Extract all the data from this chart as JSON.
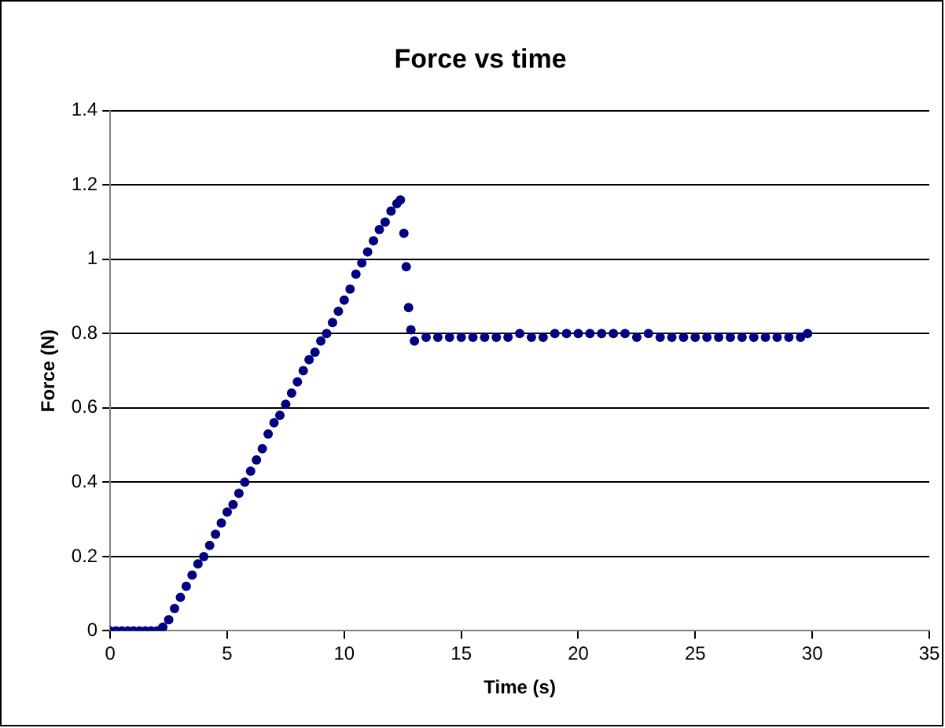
{
  "chart_data": {
    "type": "scatter",
    "title": "Force vs time",
    "xlabel": "Time (s)",
    "ylabel": "Force (N)",
    "x": [
      0,
      0.25,
      0.5,
      0.75,
      1,
      1.25,
      1.5,
      1.75,
      2,
      2.25,
      2.5,
      2.75,
      3,
      3.25,
      3.5,
      3.75,
      4,
      4.25,
      4.5,
      4.75,
      5,
      5.25,
      5.5,
      5.75,
      6,
      6.25,
      6.5,
      6.75,
      7,
      7.25,
      7.5,
      7.75,
      8,
      8.25,
      8.5,
      8.75,
      9,
      9.25,
      9.5,
      9.75,
      10,
      10.25,
      10.5,
      10.75,
      11,
      11.25,
      11.5,
      11.75,
      12,
      12.25,
      12.4,
      12.55,
      12.65,
      12.75,
      12.85,
      13,
      13.5,
      14,
      14.5,
      15,
      15.5,
      16,
      16.5,
      17,
      17.5,
      18,
      18.5,
      19,
      19.5,
      20,
      20.5,
      21,
      21.5,
      22,
      22.5,
      23,
      23.5,
      24,
      24.5,
      25,
      25.5,
      26,
      26.5,
      27,
      27.5,
      28,
      28.5,
      29,
      29.5,
      29.8
    ],
    "series": [
      {
        "color": "#000080",
        "values": [
          0,
          0,
          0,
          0,
          0,
          0,
          0,
          0,
          0,
          0.01,
          0.03,
          0.06,
          0.09,
          0.12,
          0.15,
          0.18,
          0.2,
          0.23,
          0.26,
          0.29,
          0.32,
          0.34,
          0.37,
          0.4,
          0.43,
          0.46,
          0.49,
          0.53,
          0.56,
          0.58,
          0.61,
          0.64,
          0.67,
          0.7,
          0.73,
          0.75,
          0.78,
          0.8,
          0.83,
          0.86,
          0.89,
          0.92,
          0.96,
          0.99,
          1.02,
          1.05,
          1.08,
          1.1,
          1.13,
          1.15,
          1.16,
          1.07,
          0.98,
          0.87,
          0.81,
          0.78,
          0.79,
          0.79,
          0.79,
          0.79,
          0.79,
          0.79,
          0.79,
          0.79,
          0.8,
          0.79,
          0.79,
          0.8,
          0.8,
          0.8,
          0.8,
          0.8,
          0.8,
          0.8,
          0.79,
          0.8,
          0.79,
          0.79,
          0.79,
          0.79,
          0.79,
          0.79,
          0.79,
          0.79,
          0.79,
          0.79,
          0.79,
          0.79,
          0.79,
          0.8
        ]
      }
    ],
    "xlim": [
      0,
      35
    ],
    "xticks": [
      0,
      5,
      10,
      15,
      20,
      25,
      30,
      35
    ],
    "ylim": [
      0,
      1.4
    ],
    "yticks": [
      0,
      0.2,
      0.4,
      0.6,
      0.8,
      1,
      1.2,
      1.4
    ],
    "grid": "y",
    "legend": false,
    "marker": "circle"
  }
}
